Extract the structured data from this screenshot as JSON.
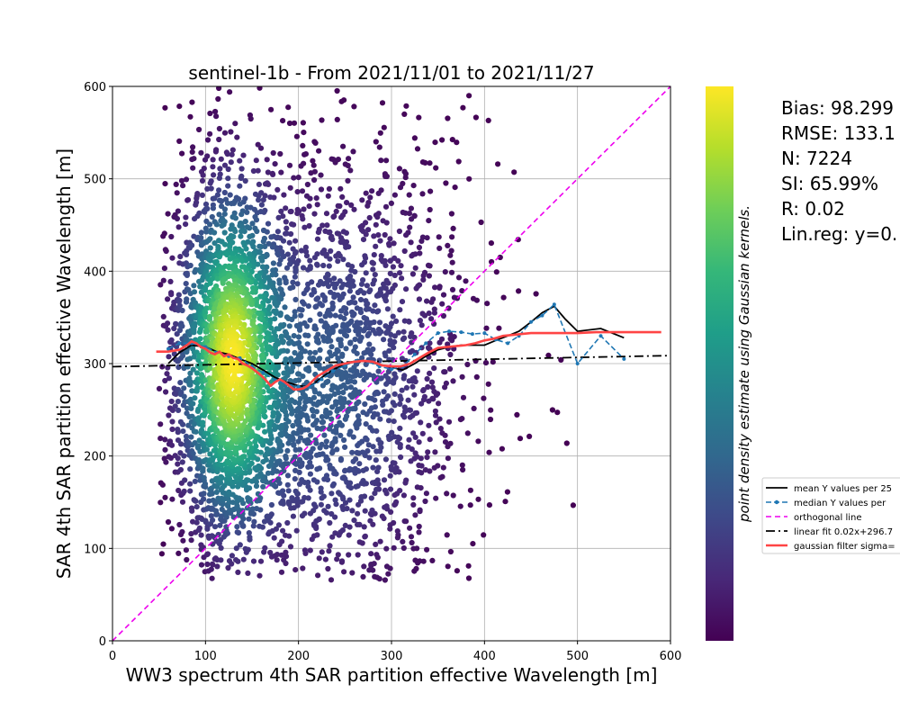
{
  "chart_data": {
    "type": "scatter",
    "title": "sentinel-1b - From 2021/11/01 to 2021/11/27",
    "xlabel": "WW3 spectrum 4th SAR partition effective Wavelength [m]",
    "ylabel": "SAR 4th SAR partition effective Wavelength [m]",
    "xlim": [
      0,
      600
    ],
    "ylim": [
      0,
      600
    ],
    "xticks": [
      "0",
      "100",
      "200",
      "300",
      "400",
      "500",
      "600"
    ],
    "yticks": [
      "0",
      "100",
      "200",
      "300",
      "400",
      "500",
      "600"
    ],
    "grid": true,
    "legend_position": "right",
    "colorbar": {
      "label": "point density estimate using Gaussian kernels.",
      "colormap": [
        "#440154",
        "#482878",
        "#3e4989",
        "#31688e",
        "#26828e",
        "#1f9e89",
        "#35b779",
        "#6ece58",
        "#b5de2b",
        "#fde725"
      ]
    },
    "stats": [
      "Bias: 98.299",
      "RMSE: 133.1",
      "N: 7224",
      "SI: 65.99%",
      "R: 0.02",
      "Lin.reg: y=0."
    ],
    "density_clusters": [
      {
        "x": 127,
        "y": 305,
        "sx": 32,
        "sy": 105,
        "weight": 0.55
      },
      {
        "x": 225,
        "y": 270,
        "sx": 60,
        "sy": 120,
        "weight": 0.3
      },
      {
        "x": 290,
        "y": 300,
        "sx": 70,
        "sy": 140,
        "weight": 0.15
      }
    ],
    "series": [
      {
        "name": "mean Y values per 25",
        "color": "#000000",
        "style": "solid",
        "x": [
          60,
          72,
          85,
          100,
          112,
          125,
          137,
          150,
          162,
          175,
          187,
          200,
          212,
          225,
          237,
          250,
          262,
          275,
          287,
          300,
          312,
          325,
          337,
          350,
          362,
          375,
          387,
          400,
          412,
          425,
          437,
          450,
          462,
          475,
          487,
          500,
          525,
          550
        ],
        "y": [
          300,
          312,
          320,
          318,
          313,
          310,
          305,
          300,
          293,
          285,
          280,
          276,
          275,
          285,
          293,
          300,
          303,
          302,
          299,
          296,
          293,
          300,
          308,
          315,
          318,
          320,
          320,
          320,
          325,
          330,
          335,
          345,
          355,
          362,
          348,
          335,
          338,
          328
        ]
      },
      {
        "name": "median Y values per",
        "color": "#1f77b4",
        "style": "dash-marker",
        "x": [
          60,
          72,
          85,
          100,
          112,
          125,
          137,
          150,
          162,
          175,
          187,
          200,
          212,
          225,
          237,
          250,
          262,
          275,
          287,
          300,
          312,
          325,
          337,
          350,
          362,
          375,
          387,
          400,
          412,
          425,
          437,
          450,
          462,
          475,
          500,
          525,
          550
        ],
        "y": [
          316,
          322,
          322,
          318,
          312,
          308,
          306,
          297,
          290,
          282,
          278,
          275,
          275,
          283,
          292,
          298,
          303,
          302,
          297,
          294,
          297,
          310,
          322,
          333,
          335,
          334,
          332,
          333,
          326,
          322,
          330,
          345,
          352,
          364,
          300,
          330,
          305
        ]
      },
      {
        "name": "orthogonal line",
        "color": "#ee00ee",
        "style": "dashed",
        "x": [
          0,
          600
        ],
        "y": [
          0,
          600
        ]
      },
      {
        "name": "linear fit 0.02x+296.7",
        "color": "#000000",
        "style": "dashdot",
        "x": [
          0,
          600
        ],
        "y": [
          296.7,
          308.7
        ]
      },
      {
        "name": "gaussian filter sigma=",
        "color": "#ff4444",
        "style": "thick",
        "x": [
          47,
          60,
          72,
          80,
          85,
          90,
          95,
          100,
          105,
          110,
          115,
          120,
          125,
          130,
          135,
          140,
          145,
          150,
          155,
          160,
          165,
          170,
          175,
          180,
          185,
          190,
          195,
          200,
          205,
          210,
          215,
          220,
          230,
          240,
          250,
          260,
          270,
          280,
          290,
          300,
          310,
          320,
          330,
          340,
          350,
          360,
          370,
          380,
          390,
          400,
          410,
          420,
          430,
          440,
          450,
          460,
          470,
          480,
          490,
          500,
          520,
          540,
          560,
          590
        ],
        "y": [
          313,
          313,
          315,
          320,
          324,
          322,
          318,
          316,
          312,
          310,
          313,
          308,
          310,
          306,
          305,
          300,
          298,
          295,
          291,
          287,
          282,
          276,
          280,
          283,
          280,
          276,
          272,
          272,
          273,
          276,
          281,
          286,
          292,
          298,
          300,
          302,
          303,
          302,
          298,
          297,
          297,
          300,
          306,
          312,
          317,
          318,
          319,
          320,
          322,
          325,
          327,
          330,
          331,
          332,
          333,
          333,
          333,
          333,
          333,
          333,
          334,
          334,
          334,
          334
        ]
      }
    ]
  }
}
